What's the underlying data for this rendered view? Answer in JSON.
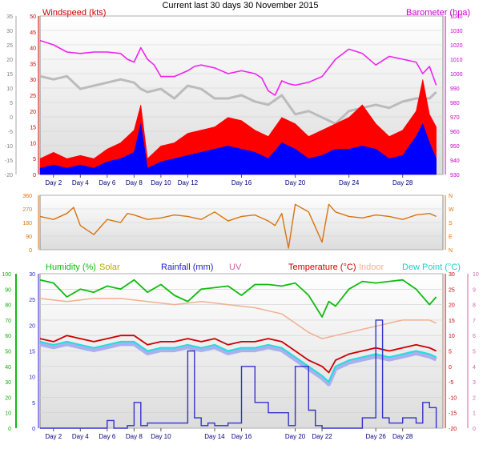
{
  "title": "Current last 30 days 30 November 2015",
  "colors": {
    "windspeed": "#ff0000",
    "gust_avg": "#0000ff",
    "barometer": "#ee22ee",
    "gust_grey": "#bbbbbb",
    "direction": "#d9730d",
    "humidity": "#11bb11",
    "solar": "#bbaa00",
    "rainfall": "#3333cc",
    "uv": "#cc66aa",
    "temperature": "#cc0000",
    "indoor": "#f0b090",
    "dewpoint": "#22dddd"
  },
  "chart_data": [
    {
      "type": "line",
      "panel": "wind-barometer",
      "legend": [
        "Windspeed (kts)",
        "Barometer (hpa)"
      ],
      "y_left": {
        "ticks_outer": [
          "35",
          "30",
          "25",
          "20",
          "15",
          "10",
          "5",
          "0",
          "-5",
          "-10",
          "-15",
          "-20"
        ],
        "ticks_inner": [
          "50",
          "45",
          "40",
          "35",
          "30",
          "25",
          "20",
          "15",
          "10",
          "5",
          "0"
        ]
      },
      "y_right": {
        "ticks": [
          "1040",
          "1030",
          "1020",
          "1010",
          "1000",
          "990",
          "980",
          "970",
          "960",
          "950",
          "940",
          "930"
        ]
      },
      "x_ticks": [
        "Day 2",
        "Day 4",
        "Day 6",
        "Day 8",
        "Day 10",
        "Day 12",
        "Day 16",
        "Day 20",
        "Day 24",
        "Day 28"
      ],
      "x_tick_days": [
        2,
        4,
        6,
        8,
        10,
        12,
        16,
        20,
        24,
        28
      ],
      "xlim": [
        1,
        31
      ],
      "ylim": [
        0,
        50
      ],
      "series": [
        {
          "name": "Barometer (hpa)",
          "axis": "right",
          "x": [
            1,
            2,
            3,
            4,
            5,
            6,
            7,
            7.5,
            8,
            8.5,
            9,
            9.5,
            10,
            11,
            12,
            12.5,
            13,
            14,
            15,
            16,
            17,
            17.5,
            18,
            18.5,
            19,
            19.5,
            20,
            21,
            22,
            23,
            24,
            25,
            26,
            27,
            28,
            29,
            29.5,
            30,
            30.5
          ],
          "values": [
            1023,
            1020,
            1015,
            1014,
            1015,
            1015,
            1014,
            1010,
            1008,
            1018,
            1010,
            1006,
            998,
            998,
            1002,
            1005,
            1006,
            1004,
            1000,
            1002,
            1000,
            997,
            988,
            985,
            995,
            993,
            992,
            994,
            998,
            1010,
            1017,
            1014,
            1006,
            1012,
            1010,
            1008,
            1000,
            1005,
            992
          ]
        },
        {
          "name": "",
          "axis": "left",
          "x": [
            1,
            2,
            3,
            4,
            5,
            6,
            7,
            8,
            8.5,
            9,
            10,
            11,
            12,
            13,
            14,
            15,
            16,
            17,
            18,
            19,
            20,
            21,
            22,
            23,
            24,
            25,
            26,
            27,
            28,
            29,
            30,
            30.5
          ],
          "values": [
            31,
            30,
            31,
            27,
            28,
            29,
            30,
            29,
            27,
            26,
            27,
            24,
            28,
            27,
            24,
            24,
            25,
            23,
            22,
            25,
            19,
            20,
            18,
            16,
            20,
            21,
            22,
            21,
            23,
            24,
            24,
            26
          ]
        },
        {
          "name": "",
          "axis": "left",
          "x": [
            1,
            2,
            3,
            4,
            5,
            6,
            7,
            8,
            8.5,
            9,
            10,
            11,
            12,
            13,
            14,
            15,
            16,
            17,
            18,
            19,
            20,
            21,
            22,
            23,
            24,
            25,
            26,
            27,
            28,
            29,
            29.5,
            30,
            30.5
          ],
          "values": [
            5,
            7,
            5,
            6,
            5,
            8,
            10,
            14,
            22,
            5,
            9,
            10,
            13,
            14,
            15,
            18,
            17,
            14,
            12,
            18,
            16,
            12,
            14,
            16,
            18,
            22,
            16,
            12,
            14,
            20,
            30,
            19,
            15
          ]
        },
        {
          "name": "",
          "axis": "left",
          "x": [
            1,
            2,
            3,
            4,
            5,
            6,
            7,
            8,
            8.5,
            9,
            10,
            11,
            12,
            13,
            14,
            15,
            16,
            17,
            18,
            19,
            20,
            21,
            22,
            23,
            24,
            25,
            26,
            27,
            28,
            29,
            29.5,
            30,
            30.5
          ],
          "values": [
            2,
            3,
            2,
            3,
            2,
            4,
            5,
            7,
            16,
            2,
            4,
            5,
            6,
            7,
            8,
            9,
            8,
            7,
            5,
            10,
            8,
            5,
            6,
            8,
            8,
            9,
            8,
            5,
            6,
            12,
            16,
            10,
            5
          ]
        }
      ]
    },
    {
      "type": "line",
      "panel": "wind-direction",
      "y_left": {
        "ticks": [
          "360",
          "270",
          "180",
          "90",
          "0"
        ]
      },
      "y_right": {
        "ticks": [
          "N",
          "W",
          "S",
          "E",
          "N"
        ]
      },
      "xlim": [
        1,
        31
      ],
      "ylim": [
        0,
        360
      ],
      "series": [
        {
          "name": "",
          "x": [
            1,
            2,
            3,
            3.5,
            4,
            5,
            6,
            7,
            7.5,
            8,
            9,
            10,
            11,
            12,
            13,
            14,
            15,
            16,
            17,
            18,
            18.5,
            19,
            19.5,
            20,
            21,
            22,
            22.5,
            23,
            24,
            25,
            26,
            27,
            28,
            29,
            30,
            30.5
          ],
          "values": [
            220,
            200,
            240,
            280,
            160,
            100,
            200,
            180,
            240,
            230,
            200,
            210,
            230,
            220,
            200,
            250,
            190,
            220,
            230,
            190,
            160,
            240,
            10,
            300,
            250,
            50,
            300,
            250,
            220,
            210,
            230,
            220,
            200,
            230,
            240,
            220
          ]
        }
      ]
    },
    {
      "type": "line",
      "panel": "humidity-rain-temp",
      "legend": [
        "Humidity (%)",
        "Solar",
        "Rainfall (mm)",
        "UV",
        "Temperature (°C)",
        "Indoor",
        "Dew Point (°C)"
      ],
      "y_left": {
        "ticks_outer": [
          "100",
          "90",
          "80",
          "70",
          "60",
          "50",
          "40",
          "30",
          "20",
          "10",
          "0"
        ],
        "ticks_inner": [
          "30",
          "25",
          "20",
          "15",
          "10",
          "5",
          "0"
        ]
      },
      "y_right": {
        "ticks_outer": [
          "30",
          "25",
          "20",
          "15",
          "10",
          "5",
          "0",
          "-5",
          "-10",
          "-15",
          "-20"
        ],
        "ticks_inner": [
          "10",
          "9",
          "8",
          "7",
          "6",
          "5",
          "4",
          "3",
          "2",
          "1",
          "0"
        ]
      },
      "x_ticks": [
        "Day 2",
        "Day 4",
        "Day 6",
        "Day 8",
        "Day 10",
        "Day 14",
        "Day 16",
        "Day 20",
        "Day 22",
        "Day 26",
        "Day 28"
      ],
      "x_tick_days": [
        2,
        4,
        6,
        8,
        10,
        14,
        16,
        20,
        22,
        26,
        28
      ],
      "xlim": [
        1,
        31
      ],
      "ylim": [
        -20,
        30
      ],
      "series": [
        {
          "name": "Humidity (%)",
          "x": [
            1,
            2,
            3,
            4,
            5,
            6,
            7,
            8,
            9,
            10,
            11,
            12,
            13,
            14,
            15,
            16,
            17,
            18,
            19,
            20,
            21,
            22,
            22.5,
            23,
            24,
            25,
            26,
            27,
            28,
            29,
            30,
            30.5
          ],
          "values": [
            96,
            94,
            85,
            90,
            88,
            92,
            90,
            96,
            88,
            93,
            86,
            82,
            90,
            91,
            92,
            86,
            93,
            93,
            92,
            94,
            86,
            72,
            82,
            79,
            90,
            95,
            94,
            95,
            96,
            90,
            80,
            85
          ]
        },
        {
          "name": "Indoor",
          "x": [
            1,
            3,
            5,
            7,
            9,
            11,
            13,
            15,
            17,
            19,
            20,
            21,
            22,
            24,
            26,
            28,
            30,
            30.5
          ],
          "values": [
            22,
            21,
            22,
            22,
            21,
            20,
            21,
            20,
            19,
            17,
            14,
            11,
            9,
            11,
            13,
            15,
            15,
            14
          ]
        },
        {
          "name": "Temperature (°C)",
          "x": [
            1,
            2,
            3,
            4,
            5,
            6,
            7,
            8,
            9,
            10,
            11,
            12,
            13,
            14,
            15,
            16,
            17,
            18,
            19,
            20,
            21,
            22,
            22.5,
            23,
            24,
            25,
            26,
            27,
            28,
            29,
            30,
            30.5
          ],
          "values": [
            9,
            8,
            10,
            9,
            8,
            9,
            10,
            10,
            7,
            8,
            8,
            9,
            8,
            9,
            7,
            8,
            8,
            9,
            8,
            5,
            2,
            0,
            -2,
            2,
            4,
            5,
            6,
            5,
            6,
            7,
            6,
            5
          ]
        },
        {
          "name": "Dew Point (°C)",
          "x": [
            1,
            2,
            3,
            4,
            5,
            6,
            7,
            8,
            9,
            10,
            11,
            12,
            13,
            14,
            15,
            16,
            17,
            18,
            19,
            20,
            21,
            22,
            22.5,
            23,
            24,
            25,
            26,
            27,
            28,
            29,
            30,
            30.5
          ],
          "values": [
            8,
            7,
            8,
            7,
            6,
            7,
            8,
            8,
            5,
            6,
            6,
            7,
            6,
            7,
            5,
            6,
            6,
            7,
            6,
            3,
            0,
            -3,
            -5,
            0,
            2,
            3,
            4,
            3,
            4,
            5,
            4,
            3
          ]
        },
        {
          "name": "Rainfall (mm)",
          "x": [
            1,
            5.5,
            6,
            6.5,
            7.5,
            8,
            8.5,
            9,
            10,
            11,
            12,
            12.5,
            13,
            13.5,
            14,
            15,
            16,
            17,
            18,
            19,
            19.5,
            20,
            21,
            21.5,
            22,
            23,
            24,
            25,
            25.5,
            26,
            26.5,
            27,
            28,
            29,
            29.5,
            30,
            30.5
          ],
          "values": [
            0,
            0,
            1.5,
            0,
            0.5,
            5,
            0.5,
            1,
            1,
            1,
            15,
            2,
            0.5,
            1,
            0.5,
            1,
            12,
            5,
            3,
            3,
            0.5,
            12,
            3.5,
            0.5,
            0,
            0,
            0,
            2,
            2,
            21,
            2,
            1,
            2,
            1,
            5,
            4,
            0
          ]
        }
      ]
    }
  ]
}
